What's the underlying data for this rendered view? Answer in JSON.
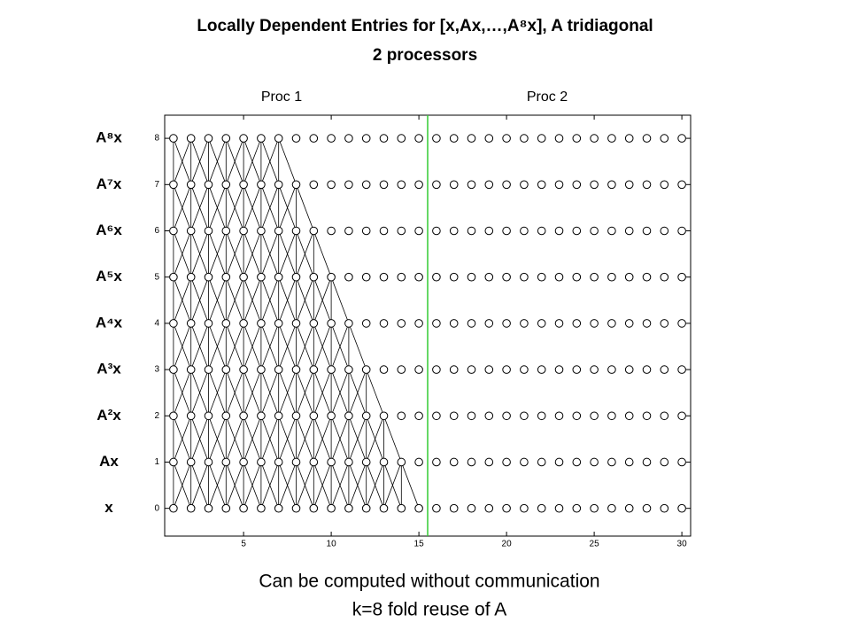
{
  "chart_data": {
    "type": "dependency",
    "title": "Locally Dependent Entries for [x,Ax,…,A⁸x], A tridiagonal",
    "subtitle": "2 processors",
    "annotations": [
      "Proc 1",
      "Proc 2"
    ],
    "footer": [
      "Can be computed without communication",
      "k=8 fold reuse of A"
    ],
    "xlim": [
      0.5,
      30.5
    ],
    "ylim": [
      -0.6,
      8.5
    ],
    "xticks": [
      5,
      10,
      15,
      20,
      25,
      30
    ],
    "yticks": [
      0,
      1,
      2,
      3,
      4,
      5,
      6,
      7,
      8
    ],
    "x": [
      1,
      2,
      3,
      4,
      5,
      6,
      7,
      8,
      9,
      10,
      11,
      12,
      13,
      14,
      15,
      16,
      17,
      18,
      19,
      20,
      21,
      22,
      23,
      24,
      25,
      26,
      27,
      28,
      29,
      30
    ],
    "levels": [
      {
        "label": "x",
        "y": 0,
        "dependent_last": 15
      },
      {
        "label": "Ax",
        "y": 1,
        "dependent_last": 14
      },
      {
        "label": "A²x",
        "y": 2,
        "dependent_last": 13
      },
      {
        "label": "A³x",
        "y": 3,
        "dependent_last": 12
      },
      {
        "label": "A⁴x",
        "y": 4,
        "dependent_last": 11
      },
      {
        "label": "A⁵x",
        "y": 5,
        "dependent_last": 10
      },
      {
        "label": "A⁶x",
        "y": 6,
        "dependent_last": 9
      },
      {
        "label": "A⁷x",
        "y": 7,
        "dependent_last": 8
      },
      {
        "label": "A⁸x",
        "y": 8,
        "dependent_last": 7
      }
    ],
    "divider_x": 15.5,
    "divider_color": "#33cc33"
  }
}
